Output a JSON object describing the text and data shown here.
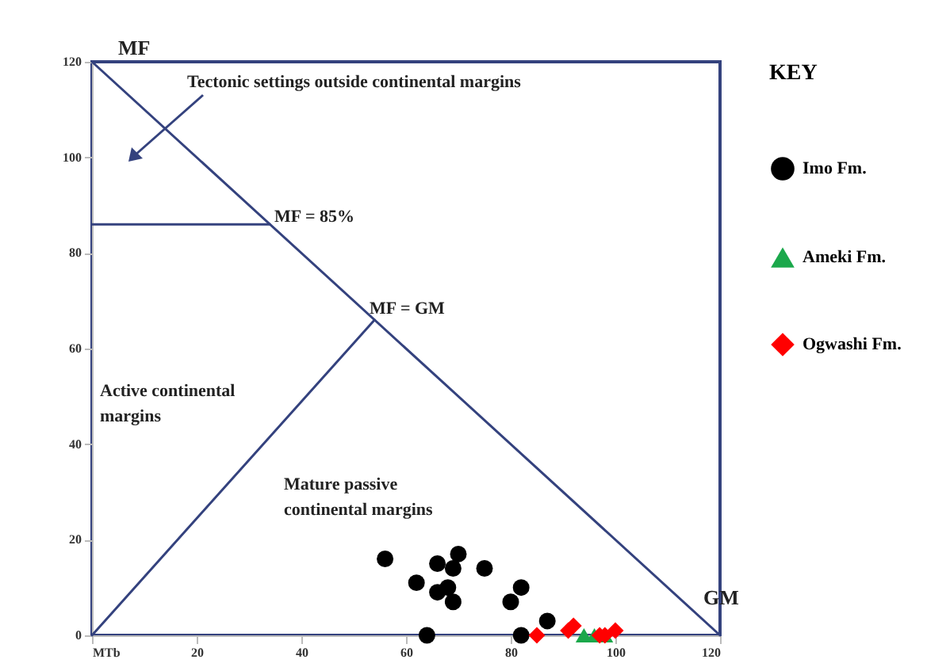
{
  "chart_data": {
    "type": "scatter",
    "xlabel": "GM",
    "ylabel": "MF",
    "legend_title": "KEY",
    "legend": "right",
    "xlim": [
      0,
      120
    ],
    "xticks": [
      {
        "value": 0,
        "label": "MTb"
      },
      20,
      40,
      60,
      80,
      100,
      120
    ],
    "ylim": [
      0,
      120
    ],
    "yticks": [
      0,
      20,
      40,
      60,
      80,
      100,
      120
    ],
    "grid": false,
    "series": [
      {
        "name": "Imo Fm.",
        "color": "#000000",
        "marker": "circle",
        "x": [
          56,
          66,
          70,
          69,
          75,
          62,
          66,
          68,
          69,
          82,
          80,
          87,
          64,
          82
        ],
        "values": [
          16,
          15,
          17,
          14,
          14,
          11,
          9,
          10,
          7,
          10,
          7,
          3,
          0,
          0
        ]
      },
      {
        "name": "Ameki Fm.",
        "color": "#1ba84b",
        "marker": "triangle",
        "x": [
          94,
          96,
          98
        ],
        "values": [
          0,
          0,
          0
        ]
      },
      {
        "name": "Ogwashi Fm.",
        "color": "#ff0000",
        "marker": "diamond",
        "x": [
          85,
          91,
          92,
          97,
          98,
          100
        ],
        "values": [
          0,
          1,
          2,
          0,
          0,
          1
        ]
      },
      {
        "type": "line",
        "color": "#34427e",
        "x": [
          0,
          120
        ],
        "values": [
          120,
          0
        ]
      },
      {
        "type": "line",
        "color": "#34427e",
        "x": [
          0,
          34
        ],
        "values": [
          86,
          86
        ]
      },
      {
        "type": "line",
        "color": "#34427e",
        "x": [
          0,
          54
        ],
        "values": [
          0,
          66
        ]
      }
    ],
    "annotations": [
      "Tectonic settings outside continental margins",
      "MF = 85%",
      "MF = GM",
      "Active continental\nmargins",
      "Mature passive\ncontinental margins"
    ]
  }
}
